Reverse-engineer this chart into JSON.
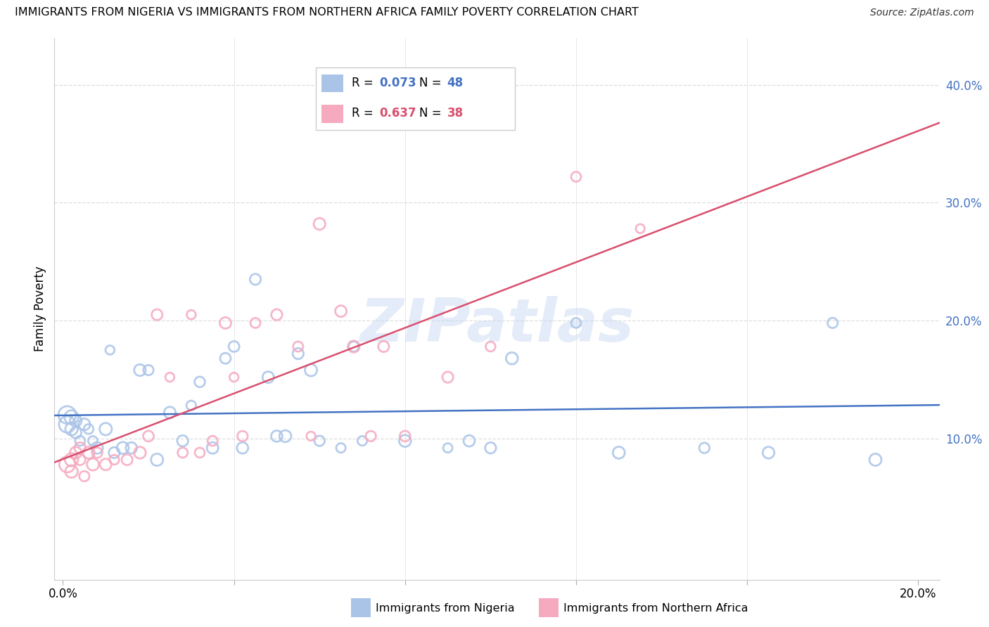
{
  "title": "IMMIGRANTS FROM NIGERIA VS IMMIGRANTS FROM NORTHERN AFRICA FAMILY POVERTY CORRELATION CHART",
  "source": "Source: ZipAtlas.com",
  "ylabel": "Family Poverty",
  "xlim": [
    -0.002,
    0.205
  ],
  "ylim": [
    -0.02,
    0.44
  ],
  "yticks": [
    0.1,
    0.2,
    0.3,
    0.4
  ],
  "ytick_labels": [
    "10.0%",
    "20.0%",
    "30.0%",
    "40.0%"
  ],
  "xtick_positions": [
    0.0,
    0.04,
    0.08,
    0.12,
    0.16,
    0.2
  ],
  "xtick_labels": [
    "0.0%",
    "",
    "",
    "",
    "",
    "20.0%"
  ],
  "nigeria_R": 0.073,
  "nigeria_N": 48,
  "northern_africa_R": 0.637,
  "northern_africa_N": 38,
  "nigeria_color": "#aac4e8",
  "northern_africa_color": "#f5aac0",
  "nigeria_line_color": "#4472c4",
  "northern_africa_line_color": "#d94f6e",
  "dashed_line_color": "#d0b0b8",
  "background_color": "#ffffff",
  "grid_color": "#dedede",
  "watermark": "ZIPatlas",
  "nigeria_x": [
    0.001,
    0.001,
    0.002,
    0.002,
    0.003,
    0.003,
    0.004,
    0.005,
    0.006,
    0.007,
    0.008,
    0.01,
    0.011,
    0.012,
    0.014,
    0.016,
    0.018,
    0.02,
    0.022,
    0.025,
    0.028,
    0.03,
    0.032,
    0.035,
    0.038,
    0.04,
    0.042,
    0.045,
    0.048,
    0.05,
    0.052,
    0.055,
    0.058,
    0.06,
    0.065,
    0.068,
    0.07,
    0.08,
    0.09,
    0.095,
    0.1,
    0.105,
    0.12,
    0.13,
    0.15,
    0.165,
    0.18,
    0.19
  ],
  "nigeria_y": [
    0.12,
    0.112,
    0.118,
    0.108,
    0.115,
    0.105,
    0.098,
    0.112,
    0.108,
    0.098,
    0.092,
    0.108,
    0.175,
    0.088,
    0.092,
    0.092,
    0.158,
    0.158,
    0.082,
    0.122,
    0.098,
    0.128,
    0.148,
    0.092,
    0.168,
    0.178,
    0.092,
    0.235,
    0.152,
    0.102,
    0.102,
    0.172,
    0.158,
    0.098,
    0.092,
    0.178,
    0.098,
    0.098,
    0.092,
    0.098,
    0.092,
    0.168,
    0.198,
    0.088,
    0.092,
    0.088,
    0.198,
    0.082
  ],
  "northern_africa_x": [
    0.001,
    0.002,
    0.002,
    0.003,
    0.004,
    0.004,
    0.005,
    0.006,
    0.007,
    0.008,
    0.01,
    0.012,
    0.015,
    0.018,
    0.02,
    0.022,
    0.025,
    0.028,
    0.03,
    0.032,
    0.035,
    0.038,
    0.04,
    0.042,
    0.045,
    0.05,
    0.055,
    0.058,
    0.06,
    0.065,
    0.068,
    0.072,
    0.075,
    0.08,
    0.09,
    0.1,
    0.12,
    0.135
  ],
  "northern_africa_y": [
    0.078,
    0.082,
    0.072,
    0.088,
    0.092,
    0.082,
    0.068,
    0.088,
    0.078,
    0.088,
    0.078,
    0.082,
    0.082,
    0.088,
    0.102,
    0.205,
    0.152,
    0.088,
    0.205,
    0.088,
    0.098,
    0.198,
    0.152,
    0.102,
    0.198,
    0.205,
    0.178,
    0.102,
    0.282,
    0.208,
    0.178,
    0.102,
    0.178,
    0.102,
    0.152,
    0.178,
    0.322,
    0.278
  ],
  "nigeria_marker_size": 120,
  "northern_africa_marker_size": 110,
  "nigeria_big_sizes": [
    320,
    280,
    200,
    160,
    140,
    130
  ],
  "northern_africa_big_sizes": [
    260,
    180,
    160,
    140,
    130,
    120
  ]
}
